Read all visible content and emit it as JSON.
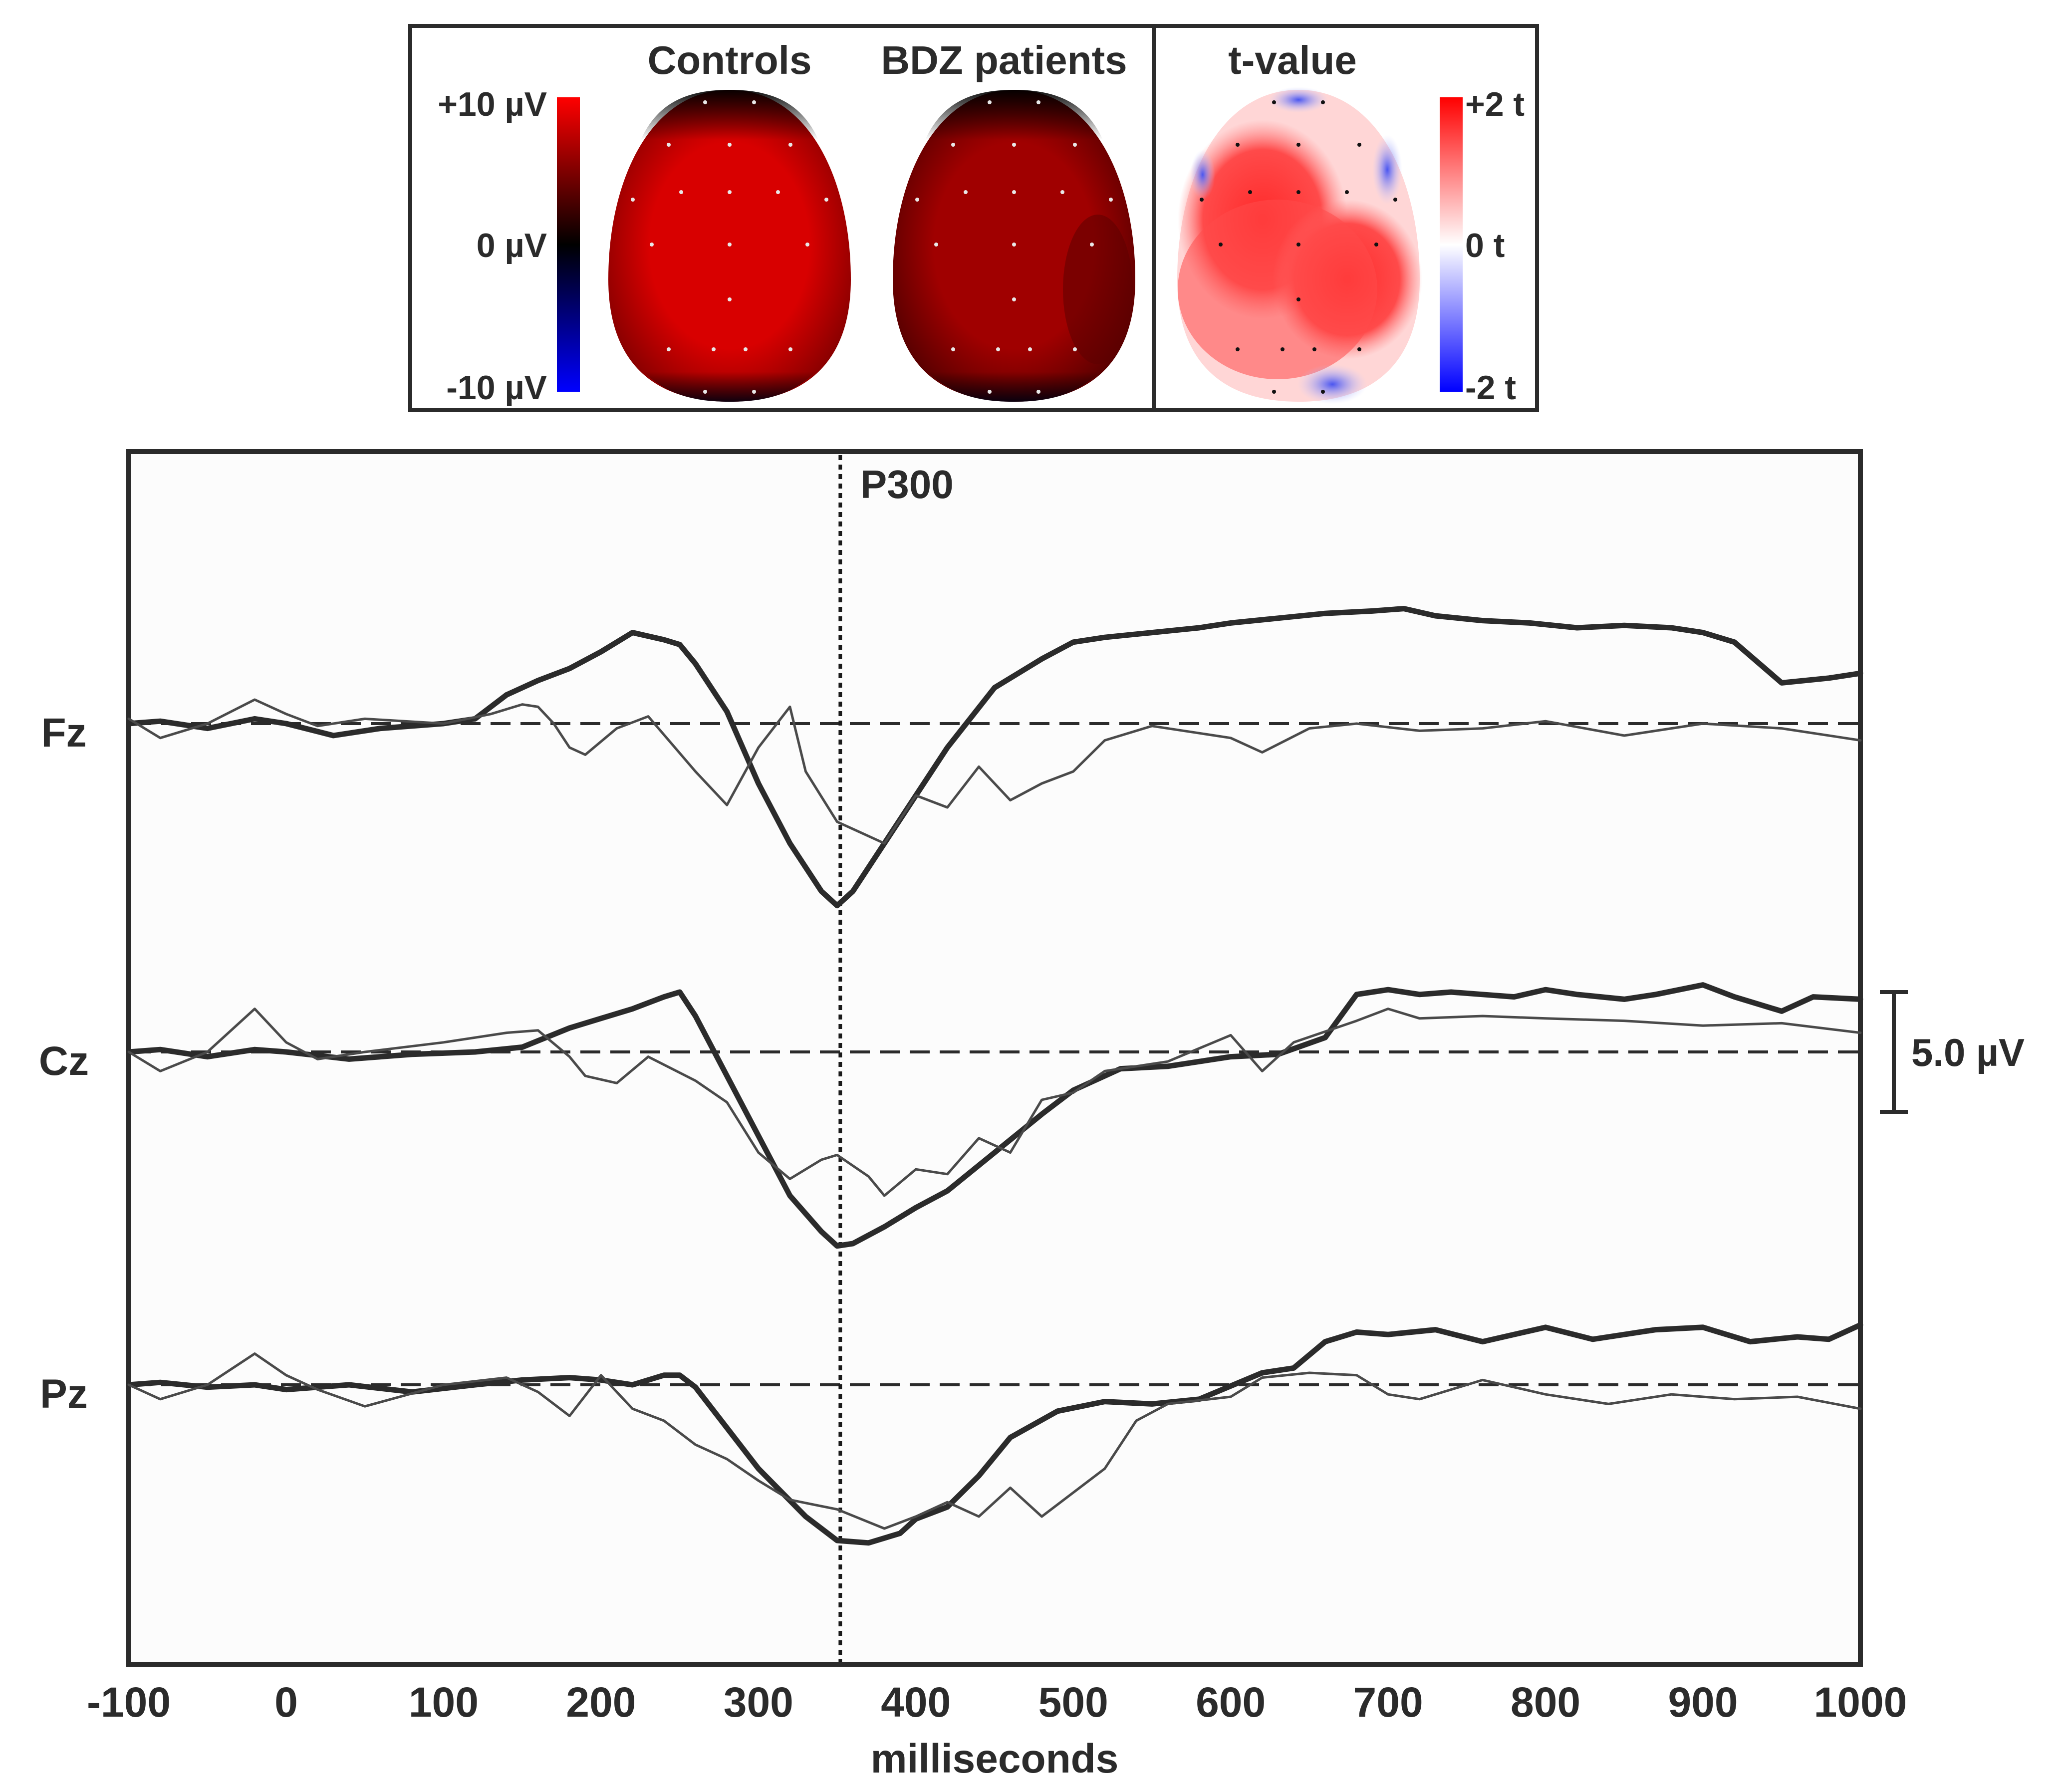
{
  "maps": {
    "panel_titles": [
      "Controls",
      "BDZ patients",
      "t-value"
    ],
    "scale_uv": {
      "labels": [
        "+10 µV",
        "0 µV",
        "-10 µV"
      ],
      "range": [
        -10,
        10
      ],
      "colors": {
        "neg": "#0000ff",
        "mid": "#000000",
        "pos": "#ff0000"
      }
    },
    "scale_t": {
      "labels": [
        "+2 t",
        "0 t",
        "-2 t"
      ],
      "range": [
        -2,
        2
      ],
      "colors": {
        "neg": "#0000ff",
        "mid": "#ffffff",
        "pos": "#ff0000"
      }
    },
    "head_fills": {
      "controls": "#d80000",
      "bdz_patients": "#a00000"
    }
  },
  "chart_data": {
    "type": "line",
    "xlabel": "milliseconds",
    "xlim": [
      -100,
      1000
    ],
    "xticks": [
      -100,
      0,
      100,
      200,
      300,
      400,
      500,
      600,
      700,
      800,
      900,
      1000
    ],
    "marker": {
      "label": "P300",
      "x": 352
    },
    "scale_bar_label": "5.0 µV",
    "scale_bar_value": 5.0,
    "negative_up": true,
    "channels": [
      {
        "label": "Fz",
        "series": [
          {
            "style": "thick",
            "x": [
              -100,
              -80,
              -50,
              -20,
              0,
              30,
              60,
              100,
              120,
              140,
              160,
              180,
              200,
              220,
              240,
              250,
              260,
              280,
              300,
              320,
              340,
              350,
              360,
              380,
              400,
              420,
              450,
              480,
              500,
              520,
              550,
              580,
              600,
              630,
              660,
              690,
              710,
              730,
              760,
              790,
              820,
              850,
              880,
              900,
              920,
              950,
              980,
              1000
            ],
            "y": [
              0,
              -0.1,
              0.2,
              -0.2,
              0,
              0.5,
              0.2,
              0,
              -0.2,
              -1.2,
              -1.8,
              -2.3,
              -3.0,
              -3.8,
              -3.5,
              -3.3,
              -2.5,
              -0.5,
              2.5,
              5.0,
              7.0,
              7.6,
              7.0,
              5.0,
              3.0,
              1.0,
              -1.5,
              -2.7,
              -3.4,
              -3.6,
              -3.8,
              -4.0,
              -4.2,
              -4.4,
              -4.6,
              -4.7,
              -4.8,
              -4.5,
              -4.3,
              -4.2,
              -4.0,
              -4.1,
              -4.0,
              -3.8,
              -3.4,
              -1.7,
              -1.9,
              -2.1
            ]
          },
          {
            "style": "thin",
            "x": [
              -100,
              -80,
              -50,
              -20,
              0,
              20,
              50,
              100,
              130,
              150,
              160,
              170,
              180,
              190,
              210,
              230,
              260,
              280,
              300,
              320,
              330,
              350,
              360,
              380,
              400,
              420,
              440,
              460,
              480,
              500,
              520,
              550,
              580,
              600,
              620,
              650,
              680,
              720,
              760,
              800,
              850,
              900,
              950,
              1000
            ],
            "y": [
              -0.2,
              0.6,
              0,
              -1.0,
              -0.4,
              0.1,
              -0.2,
              0,
              -0.4,
              -0.8,
              -0.7,
              0,
              1.0,
              1.3,
              0.2,
              -0.3,
              2.0,
              3.4,
              1.0,
              -0.7,
              2.0,
              4.1,
              4.4,
              5.0,
              3.0,
              3.5,
              1.8,
              3.2,
              2.5,
              2.0,
              0.7,
              0.1,
              0.4,
              0.6,
              1.2,
              0.2,
              0,
              0.3,
              0.2,
              -0.1,
              0.5,
              0,
              0.2,
              0.7
            ]
          }
        ]
      },
      {
        "label": "Cz",
        "series": [
          {
            "style": "thick",
            "x": [
              -100,
              -80,
              -50,
              -20,
              0,
              40,
              80,
              120,
              150,
              180,
              200,
              220,
              240,
              250,
              260,
              280,
              300,
              320,
              340,
              350,
              360,
              380,
              400,
              420,
              450,
              480,
              500,
              530,
              560,
              600,
              630,
              660,
              680,
              700,
              720,
              740,
              760,
              780,
              800,
              820,
              850,
              870,
              900,
              920,
              950,
              970,
              1000
            ],
            "y": [
              0,
              -0.1,
              0.2,
              -0.1,
              0,
              0.3,
              0.1,
              0,
              -0.2,
              -1.0,
              -1.4,
              -1.8,
              -2.3,
              -2.5,
              -1.5,
              1.0,
              3.5,
              6.0,
              7.5,
              8.1,
              8.0,
              7.3,
              6.5,
              5.8,
              4.2,
              2.6,
              1.6,
              0.7,
              0.6,
              0.2,
              0.1,
              -0.6,
              -2.4,
              -2.6,
              -2.4,
              -2.5,
              -2.4,
              -2.3,
              -2.6,
              -2.4,
              -2.2,
              -2.4,
              -2.8,
              -2.3,
              -1.7,
              -2.3,
              -2.2
            ]
          },
          {
            "style": "thin",
            "x": [
              -100,
              -80,
              -50,
              -20,
              0,
              20,
              50,
              100,
              140,
              160,
              180,
              190,
              210,
              230,
              260,
              280,
              300,
              320,
              340,
              350,
              370,
              380,
              400,
              420,
              440,
              460,
              480,
              500,
              520,
              550,
              560,
              600,
              620,
              640,
              680,
              700,
              720,
              760,
              800,
              850,
              900,
              950,
              1000
            ],
            "y": [
              0,
              0.8,
              0,
              -1.8,
              -0.4,
              0.3,
              0,
              -0.4,
              -0.8,
              -0.9,
              0.2,
              1.0,
              1.3,
              0.2,
              1.2,
              2.1,
              4.2,
              5.3,
              4.5,
              4.3,
              5.2,
              6.0,
              4.9,
              5.1,
              3.6,
              4.2,
              2.0,
              1.7,
              0.8,
              0.5,
              0.4,
              -0.7,
              0.8,
              -0.4,
              -1.3,
              -1.8,
              -1.4,
              -1.5,
              -1.4,
              -1.3,
              -1.1,
              -1.2,
              -0.8
            ]
          }
        ]
      },
      {
        "label": "Pz",
        "series": [
          {
            "style": "thick",
            "x": [
              -100,
              -80,
              -50,
              -20,
              0,
              40,
              80,
              120,
              150,
              180,
              200,
              220,
              240,
              250,
              260,
              280,
              300,
              330,
              350,
              370,
              390,
              400,
              420,
              440,
              460,
              490,
              520,
              550,
              580,
              620,
              640,
              660,
              680,
              700,
              730,
              760,
              800,
              830,
              870,
              900,
              930,
              960,
              980,
              1000
            ],
            "y": [
              0,
              -0.1,
              0.1,
              0,
              0.2,
              0,
              0.3,
              0,
              -0.2,
              -0.3,
              -0.2,
              0,
              -0.4,
              -0.4,
              0.1,
              1.8,
              3.5,
              5.5,
              6.5,
              6.6,
              6.2,
              5.6,
              5.1,
              3.8,
              2.2,
              1.1,
              0.7,
              0.8,
              0.6,
              -0.5,
              -0.7,
              -1.8,
              -2.2,
              -2.1,
              -2.3,
              -1.8,
              -2.4,
              -1.9,
              -2.3,
              -2.4,
              -1.8,
              -2.0,
              -1.9,
              -2.5
            ]
          },
          {
            "style": "thin",
            "x": [
              -100,
              -80,
              -50,
              -20,
              0,
              20,
              50,
              100,
              140,
              160,
              180,
              200,
              220,
              240,
              260,
              280,
              300,
              320,
              350,
              380,
              400,
              420,
              440,
              460,
              480,
              500,
              520,
              540,
              560,
              600,
              620,
              650,
              680,
              700,
              720,
              760,
              800,
              840,
              880,
              920,
              960,
              1000
            ],
            "y": [
              0,
              0.6,
              0,
              -1.3,
              -0.4,
              0.2,
              0.9,
              0,
              -0.3,
              0.3,
              1.3,
              -0.4,
              1.0,
              1.5,
              2.5,
              3.1,
              4.0,
              4.8,
              5.2,
              6.0,
              5.5,
              4.9,
              5.5,
              4.3,
              5.5,
              4.5,
              3.5,
              1.5,
              0.8,
              0.5,
              -0.3,
              -0.5,
              -0.4,
              0.4,
              0.6,
              -0.2,
              0.4,
              0.8,
              0.4,
              0.6,
              0.5,
              1.0
            ]
          }
        ]
      }
    ]
  }
}
